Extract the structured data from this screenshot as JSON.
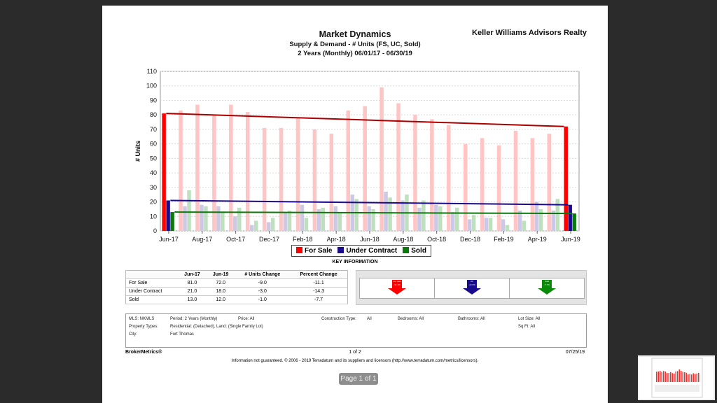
{
  "header": {
    "title": "Market Dynamics",
    "subtitle": "Supply & Demand - # Units (FS, UC, Sold)",
    "period": "2 Years (Monthly) 06/01/17 - 06/30/19",
    "brand": "Keller Williams Advisors Realty"
  },
  "chart_data": {
    "type": "bar",
    "ylabel": "# Units",
    "ylim": [
      0,
      110
    ],
    "yticks": [
      0,
      10,
      20,
      30,
      40,
      50,
      60,
      70,
      80,
      90,
      100,
      110
    ],
    "xtick_labels": [
      "Jun-17",
      "Aug-17",
      "Oct-17",
      "Dec-17",
      "Feb-18",
      "Apr-18",
      "Jun-18",
      "Aug-18",
      "Oct-18",
      "Dec-18",
      "Feb-19",
      "Apr-19",
      "Jun-19"
    ],
    "categories": [
      "Jun-17",
      "Jul-17",
      "Aug-17",
      "Sep-17",
      "Oct-17",
      "Nov-17",
      "Dec-17",
      "Jan-18",
      "Feb-18",
      "Mar-18",
      "Apr-18",
      "May-18",
      "Jun-18",
      "Jul-18",
      "Aug-18",
      "Sep-18",
      "Oct-18",
      "Nov-18",
      "Dec-18",
      "Jan-19",
      "Feb-19",
      "Mar-19",
      "Apr-19",
      "May-19",
      "Jun-19"
    ],
    "series": [
      {
        "name": "For Sale",
        "color": "#ff0000",
        "light": "#ffc4c4",
        "values": [
          81,
          83,
          87,
          80,
          87,
          82,
          71,
          71,
          78,
          70,
          67,
          83,
          86,
          99,
          88,
          80,
          77,
          73,
          60,
          64,
          59,
          69,
          64,
          67,
          72
        ]
      },
      {
        "name": "Under Contract",
        "color": "#1a0a8c",
        "light": "#cdc8e6",
        "values": [
          21,
          17,
          18,
          17,
          10,
          4,
          6,
          13,
          18,
          15,
          17,
          25,
          17,
          27,
          21,
          16,
          18,
          13,
          8,
          9,
          8,
          14,
          20,
          14,
          18
        ]
      },
      {
        "name": "Sold",
        "color": "#0a7a0a",
        "light": "#bfe0bf",
        "values": [
          13,
          28,
          17,
          13,
          16,
          7,
          9,
          14,
          9,
          16,
          13,
          22,
          15,
          23,
          25,
          21,
          17,
          16,
          11,
          9,
          4,
          7,
          15,
          22,
          12
        ]
      }
    ],
    "trend_lines": [
      {
        "series": "For Sale",
        "start": 81,
        "end": 72,
        "color": "#aa0000"
      },
      {
        "series": "Under Contract",
        "start": 21,
        "end": 18,
        "color": "#1a0a8c"
      },
      {
        "series": "Sold",
        "start": 13,
        "end": 12,
        "color": "#0a7a0a"
      }
    ],
    "legend_position": "bottom-center",
    "grid": true
  },
  "legend": {
    "for_sale": "For Sale",
    "under_contract": "Under Contract",
    "sold": "Sold"
  },
  "key_info": {
    "title": "KEY INFORMATION",
    "headers": [
      "",
      "Jun-17",
      "Jun-19",
      "# Units Change",
      "Percent Change"
    ],
    "rows": [
      [
        "For Sale",
        "81.0",
        "72.0",
        "-9.0",
        "-11.1"
      ],
      [
        "Under Contract",
        "21.0",
        "18.0",
        "-3.0",
        "-14.3"
      ],
      [
        "Sold",
        "13.0",
        "12.0",
        "-1.0",
        "-7.7"
      ]
    ]
  },
  "arrows": [
    {
      "label": "For Sale",
      "pct": "-11.1%",
      "color": "#ff0000"
    },
    {
      "label": "UC",
      "pct": "-14.3%",
      "color": "#1a0a8c"
    },
    {
      "label": "Sold",
      "pct": "-7.7%",
      "color": "#0a8a0a"
    }
  ],
  "meta": {
    "mls": "MLS:  NKMLS",
    "period": "Period:   2 Years (Monthly)",
    "price": "Price:   All",
    "construction": "Construction Type:",
    "construction_val": "All",
    "bedrooms": "Bedrooms:   All",
    "bathrooms": "Bathrooms:   All",
    "lot": "Lot Size:   All",
    "proptypes_label": "Property Types:",
    "proptypes": "Residential: (Detached), Land: (Single Family Lot)",
    "sqft": "Sq Ft:   All",
    "city_label": "City:",
    "city": "Fort Thomas"
  },
  "footer": {
    "brand": "BrokerMetrics®",
    "page": "1 of 2",
    "date": "07/25/19",
    "disclaimer": "Information not guaranteed.  © 2006 - 2019 Terradatum and its suppliers and licensors (http://www.terradatum.com/metrics/licensors)."
  },
  "viewer": {
    "page_indicator": "Page 1 of 1"
  }
}
